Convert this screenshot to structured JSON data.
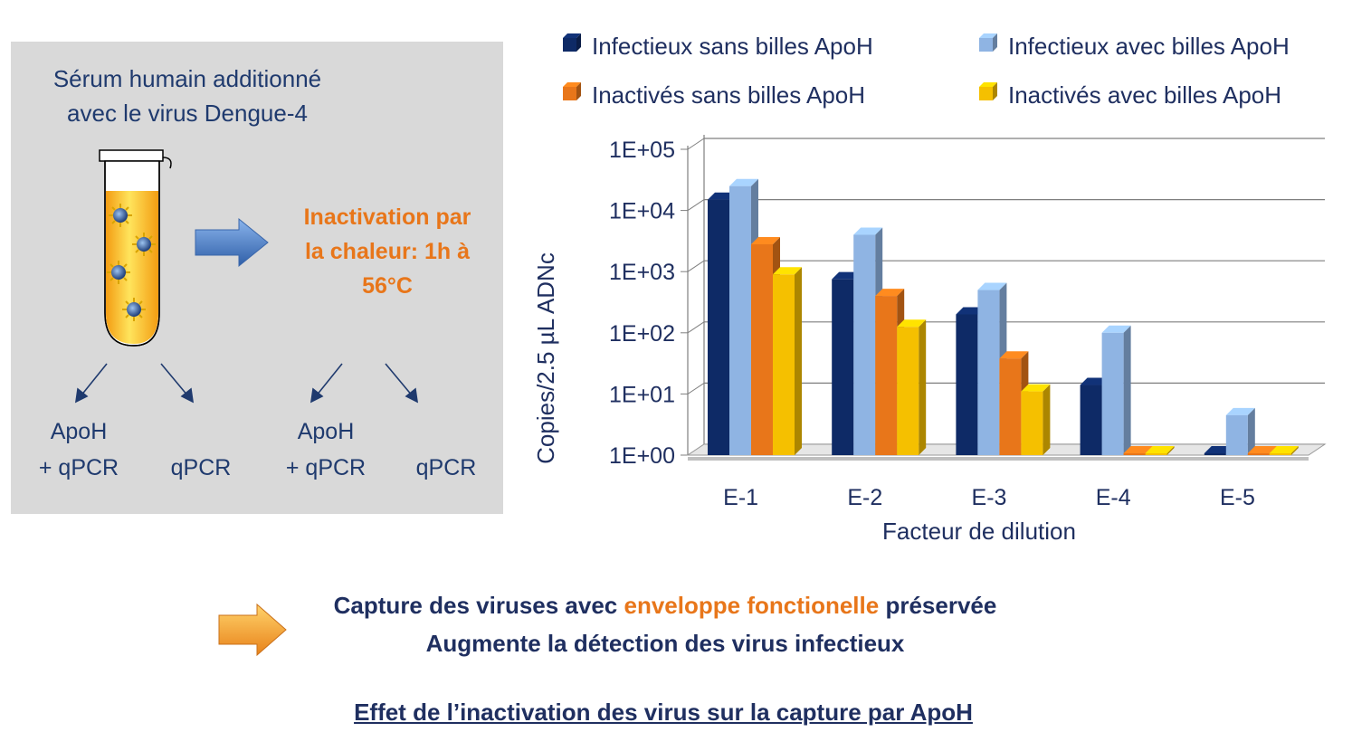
{
  "panel": {
    "serum_line1": "Sérum humain additionné",
    "serum_line2": "avec le virus Dengue-4",
    "inactivation_line1": "Inactivation par",
    "inactivation_line2": "la chaleur: 1h à",
    "inactivation_line3": "56°C",
    "methods": [
      {
        "line1": "ApoH",
        "line2": "+ qPCR"
      },
      {
        "line1": "",
        "line2": "qPCR"
      },
      {
        "line1": "ApoH",
        "line2": "+ qPCR"
      },
      {
        "line1": "",
        "line2": "qPCR"
      }
    ]
  },
  "conclusion": {
    "line1_before": "Capture des viruses avec ",
    "line1_highlight": "enveloppe fonctionelle",
    "line1_after": " préservée",
    "line2": "Augmente la détection des virus infectieux"
  },
  "footer_title": "Effet de l’inactivation des virus sur la capture par ApoH",
  "chart_data": {
    "type": "bar",
    "y_scale": "log",
    "xlabel": "Facteur de dilution",
    "ylabel": "Copies/2.5 µL ADNc",
    "ylim": [
      1,
      100000
    ],
    "y_ticks": [
      "1E+00",
      "1E+01",
      "1E+02",
      "1E+03",
      "1E+04",
      "1E+05"
    ],
    "grid": true,
    "legend_position": "top",
    "categories": [
      "E-1",
      "E-2",
      "E-3",
      "E-4",
      "E-5"
    ],
    "series": [
      {
        "name": "Infectieux sans billes ApoH",
        "color": "#0e2a66",
        "values": [
          15000,
          750,
          200,
          14,
          1
        ]
      },
      {
        "name": "Infectieux avec billes ApoH",
        "color": "#8fb4e3",
        "values": [
          25000,
          4000,
          500,
          100,
          4.5
        ]
      },
      {
        "name": "Inactivés sans billes ApoH",
        "color": "#e8761a",
        "values": [
          2800,
          400,
          38,
          1,
          1
        ]
      },
      {
        "name": "Inactivés avec billes ApoH",
        "color": "#f5c000",
        "values": [
          900,
          125,
          11,
          1,
          1
        ]
      }
    ]
  }
}
